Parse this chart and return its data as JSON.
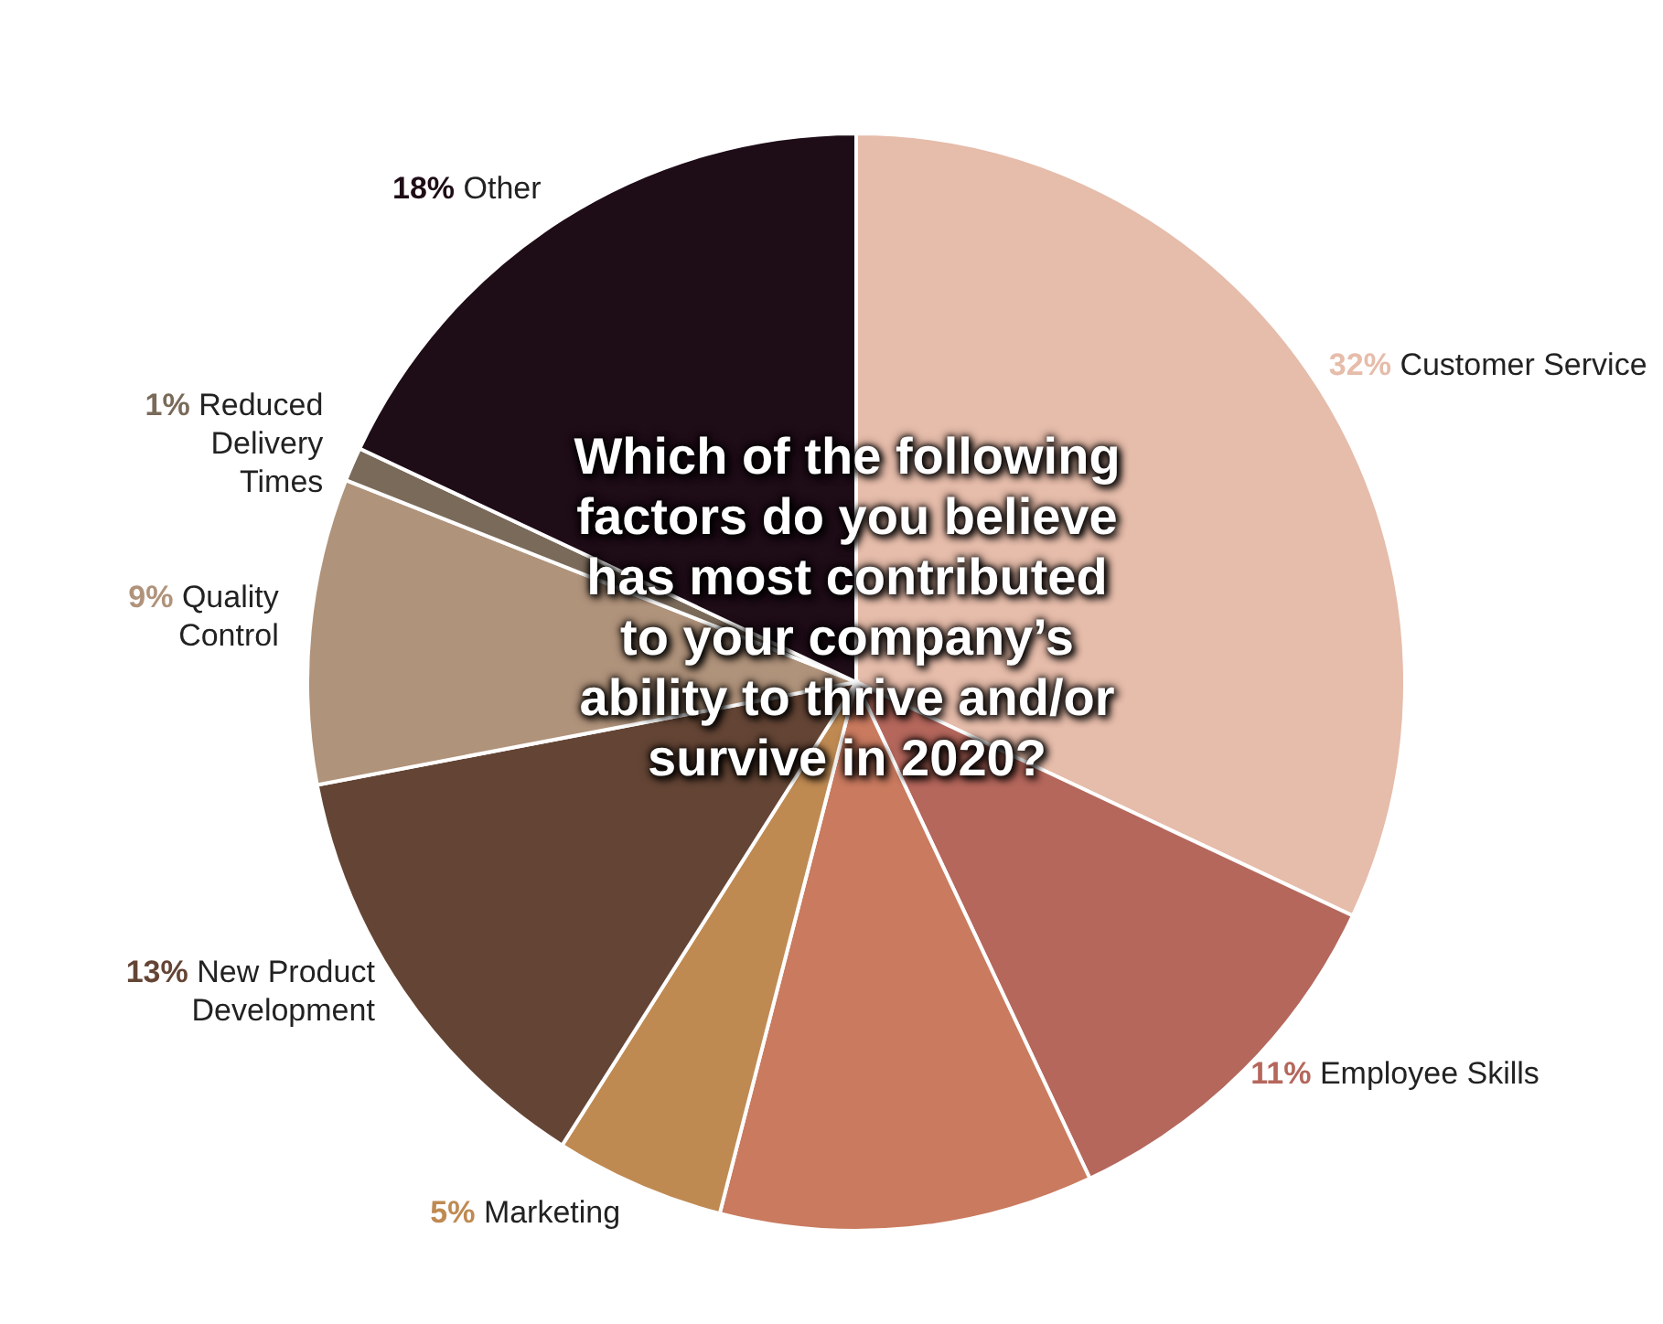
{
  "chart_data": {
    "type": "pie",
    "title": "Which of the following factors do you believe has most contributed to your company’s ability to thrive and/or survive in 2020?",
    "categories": [
      "Customer Service",
      "Employee Skills",
      null,
      "Marketing",
      "New Product Development",
      "Quality Control",
      "Reduced Delivery Times",
      "Other"
    ],
    "values": [
      32,
      11,
      11,
      5,
      13,
      9,
      1,
      18
    ],
    "colors": [
      "#e6bcaa",
      "#b5675c",
      "#c97a5f",
      "#bf8a52",
      "#644535",
      "#b0937b",
      "#7a6a5a",
      "#1e0c17"
    ],
    "value_labels": [
      "32%",
      "11%",
      null,
      "5%",
      "13%",
      "9%",
      "1%",
      "18%"
    ]
  }
}
